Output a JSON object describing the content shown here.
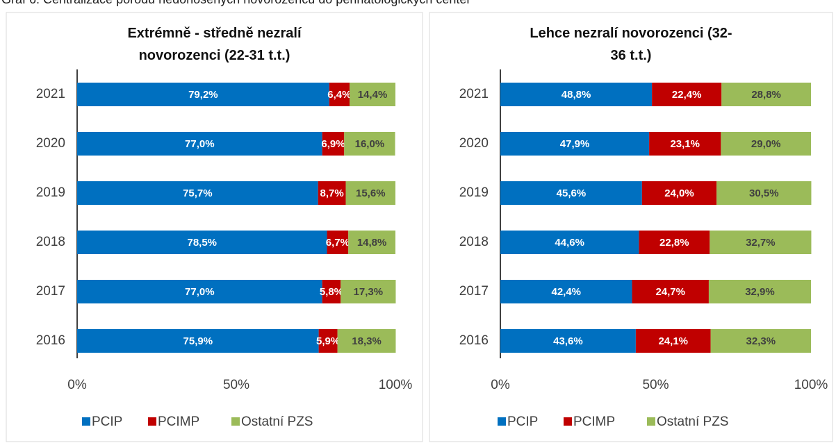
{
  "caption": "Graf 6: Centralizace porodů nedonošených novorozenců do perinatologických center",
  "chart_data": [
    {
      "type": "bar",
      "orientation": "horizontal",
      "stacked": true,
      "title": "Extrémně - středně nezralí novorozenci (22-31 t.t.)",
      "categories": [
        "2021",
        "2020",
        "2019",
        "2018",
        "2017",
        "2016"
      ],
      "series": [
        {
          "name": "PCIP",
          "color": "#0070c0",
          "values": [
            79.2,
            77.0,
            75.7,
            78.5,
            77.0,
            75.9
          ],
          "value_labels": [
            "79,2%",
            "77,0%",
            "75,7%",
            "78,5%",
            "77,0%",
            "75,9%"
          ]
        },
        {
          "name": "PCIMP",
          "color": "#c00000",
          "values": [
            6.4,
            6.9,
            8.7,
            6.7,
            5.8,
            5.9
          ],
          "value_labels": [
            "6,4%",
            "6,9%",
            "8,7%",
            "6,7%",
            "5,8%",
            "5,9%"
          ]
        },
        {
          "name": "Ostatní PZS",
          "color": "#9bbb59",
          "values": [
            14.4,
            16.0,
            15.6,
            14.8,
            17.3,
            18.3
          ],
          "value_labels": [
            "14,4%",
            "16,0%",
            "15,6%",
            "14,8%",
            "17,3%",
            "18,3%"
          ]
        }
      ],
      "xlim": [
        0,
        100
      ],
      "xticks": [
        {
          "value": 0,
          "label": "0%"
        },
        {
          "value": 50,
          "label": "50%"
        },
        {
          "value": 100,
          "label": "100%"
        }
      ],
      "legend": "bottom"
    },
    {
      "type": "bar",
      "orientation": "horizontal",
      "stacked": true,
      "title": "Lehce nezralí novorozenci (32-36 t.t.)",
      "categories": [
        "2021",
        "2020",
        "2019",
        "2018",
        "2017",
        "2016"
      ],
      "series": [
        {
          "name": "PCIP",
          "color": "#0070c0",
          "values": [
            48.8,
            47.9,
            45.6,
            44.6,
            42.4,
            43.6
          ],
          "value_labels": [
            "48,8%",
            "47,9%",
            "45,6%",
            "44,6%",
            "42,4%",
            "43,6%"
          ]
        },
        {
          "name": "PCIMP",
          "color": "#c00000",
          "values": [
            22.4,
            23.1,
            24.0,
            22.8,
            24.7,
            24.1
          ],
          "value_labels": [
            "22,4%",
            "23,1%",
            "24,0%",
            "22,8%",
            "24,7%",
            "24,1%"
          ]
        },
        {
          "name": "Ostatní PZS",
          "color": "#9bbb59",
          "values": [
            28.8,
            29.0,
            30.5,
            32.7,
            32.9,
            32.3
          ],
          "value_labels": [
            "28,8%",
            "29,0%",
            "30,5%",
            "32,7%",
            "32,9%",
            "32,3%"
          ]
        }
      ],
      "xlim": [
        0,
        100
      ],
      "xticks": [
        {
          "value": 0,
          "label": "0%"
        },
        {
          "value": 50,
          "label": "50%"
        },
        {
          "value": 100,
          "label": "100%"
        }
      ],
      "legend": "bottom"
    }
  ]
}
